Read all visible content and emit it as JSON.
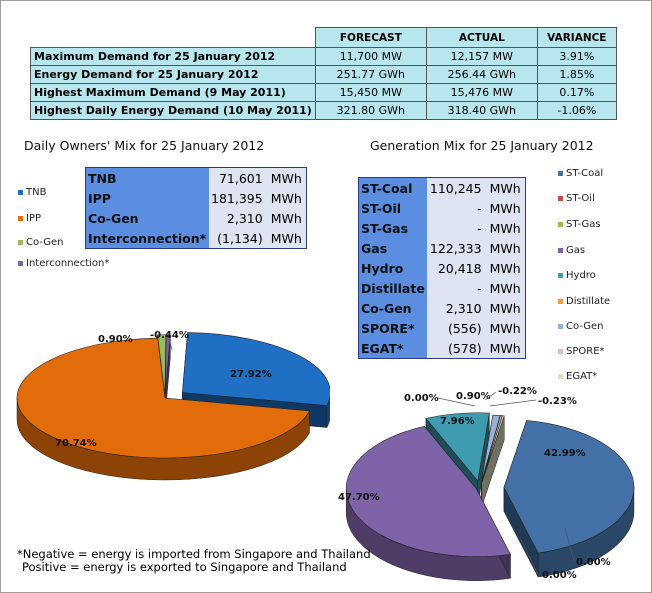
{
  "summary": {
    "headers": [
      "FORECAST",
      "ACTUAL",
      "VARIANCE"
    ],
    "rows": [
      {
        "label": "Maximum Demand for 25 January 2012",
        "forecast": "11,700  MW",
        "actual": "12,157  MW",
        "variance": "3.91%"
      },
      {
        "label": "Energy Demand for 25 January 2012",
        "forecast": "251.77  GWh",
        "actual": "256.44  GWh",
        "variance": "1.85%"
      },
      {
        "label": "Highest Maximum Demand (9 May 2011)",
        "forecast": "15,450  MW",
        "actual": "15,476  MW",
        "variance": "0.17%"
      },
      {
        "label": "Highest Daily Energy Demand (10 May 2011)",
        "forecast": "321.80  GWh",
        "actual": "318.40  GWh",
        "variance": "-1.06%"
      }
    ]
  },
  "owners_mix": {
    "title": "Daily Owners' Mix for 25 January 2012",
    "rows": [
      {
        "name": "TNB",
        "value": "71,601",
        "unit": "MWh"
      },
      {
        "name": "IPP",
        "value": "181,395",
        "unit": "MWh"
      },
      {
        "name": "Co-Gen",
        "value": "2,310",
        "unit": "MWh"
      },
      {
        "name": "Interconnection*",
        "value": "(1,134)",
        "unit": "MWh"
      }
    ],
    "legend": [
      {
        "label": "TNB",
        "color": "#1f6fc4"
      },
      {
        "label": "IPP",
        "color": "#e36c0a"
      },
      {
        "label": "Co-Gen",
        "color": "#9bbb59"
      },
      {
        "label": "Interconnection*",
        "color": "#7f63a8"
      }
    ]
  },
  "generation_mix": {
    "title": "Generation Mix for 25 January 2012",
    "rows": [
      {
        "name": "ST-Coal",
        "value": "110,245",
        "unit": "MWh"
      },
      {
        "name": "ST-Oil",
        "value": "-",
        "unit": "MWh"
      },
      {
        "name": "ST-Gas",
        "value": "-",
        "unit": "MWh"
      },
      {
        "name": "Gas",
        "value": "122,333",
        "unit": "MWh"
      },
      {
        "name": "Hydro",
        "value": "20,418",
        "unit": "MWh"
      },
      {
        "name": "Distillate",
        "value": "-",
        "unit": "MWh"
      },
      {
        "name": "Co-Gen",
        "value": "2,310",
        "unit": "MWh"
      },
      {
        "name": "SPORE*",
        "value": "(556)",
        "unit": "MWh"
      },
      {
        "name": "EGAT*",
        "value": "(578)",
        "unit": "MWh"
      }
    ],
    "legend": [
      {
        "label": "ST-Coal",
        "color": "#4472a8"
      },
      {
        "label": "ST-Oil",
        "color": "#c0504d"
      },
      {
        "label": "ST-Gas",
        "color": "#9bbb59"
      },
      {
        "label": "Gas",
        "color": "#7f63a8"
      },
      {
        "label": "Hydro",
        "color": "#3f9bb0"
      },
      {
        "label": "Distillate",
        "color": "#f79646"
      },
      {
        "label": "Co-Gen",
        "color": "#95b3d7"
      },
      {
        "label": "SPORE*",
        "color": "#e6b9b8"
      },
      {
        "label": "EGAT*",
        "color": "#d7e4bd"
      }
    ]
  },
  "chart_data": [
    {
      "type": "pie",
      "title": "Daily Owners' Mix for 25 January 2012",
      "categories": [
        "TNB",
        "IPP",
        "Co-Gen",
        "Interconnection*"
      ],
      "values": [
        27.92,
        70.74,
        0.9,
        -0.44
      ],
      "data_labels": [
        "27.92%",
        "70.74%",
        "0.90%",
        "-0.44%"
      ],
      "colors": [
        "#1f6fc4",
        "#e36c0a",
        "#9bbb59",
        "#7f63a8"
      ],
      "legend_position": "left"
    },
    {
      "type": "pie",
      "title": "Generation Mix for 25 January 2012",
      "categories": [
        "ST-Coal",
        "ST-Oil",
        "ST-Gas",
        "Gas",
        "Hydro",
        "Distillate",
        "Co-Gen",
        "SPORE*",
        "EGAT*"
      ],
      "values": [
        42.99,
        0.0,
        0.0,
        47.7,
        7.96,
        0.0,
        0.9,
        -0.22,
        -0.23
      ],
      "data_labels": [
        "42.99%",
        "0.00%",
        "0.00%",
        "47.70%",
        "7.96%",
        "0.00%",
        "0.90%",
        "-0.22%",
        "-0.23%"
      ],
      "colors": [
        "#4472a8",
        "#c0504d",
        "#9bbb59",
        "#7f63a8",
        "#3f9bb0",
        "#f79646",
        "#95b3d7",
        "#e6b9b8",
        "#d7e4bd"
      ],
      "legend_position": "right"
    }
  ],
  "footnote": {
    "line1": "*Negative = energy is imported from Singapore and Thailand",
    "line2": "Positive = energy is exported to Singapore and Thailand"
  }
}
